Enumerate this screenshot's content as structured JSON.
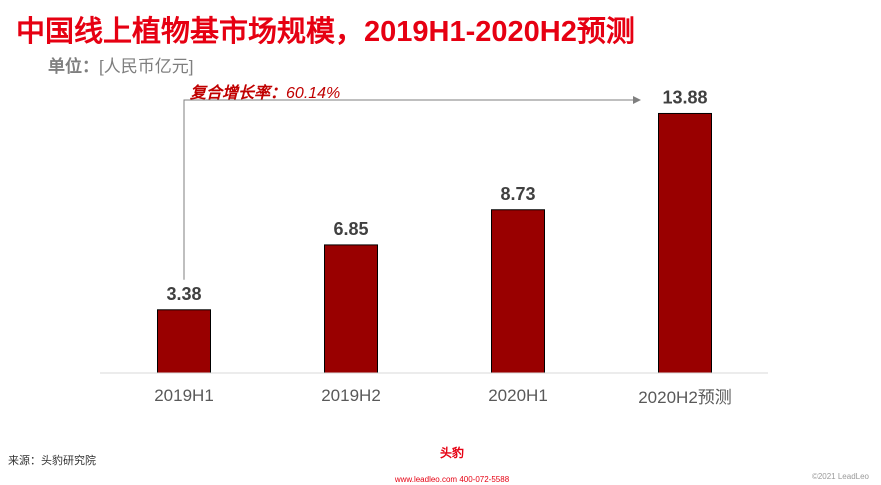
{
  "header": {
    "title": "中国线上植物基市场规模，2019H1-2020H2预测",
    "unit_label": "单位：",
    "unit_value": "[人民币亿元]"
  },
  "annotation": {
    "cagr_label": "复合增长率：",
    "cagr_value": "60.14%"
  },
  "chart_data": {
    "type": "bar",
    "categories": [
      "2019H1",
      "2019H2",
      "2020H1",
      "2020H2预测"
    ],
    "values": [
      3.38,
      6.85,
      8.73,
      13.88
    ],
    "value_labels": [
      "3.38",
      "6.85",
      "8.73",
      "13.88"
    ],
    "title": "中国线上植物基市场规模，2019H1-2020H2预测",
    "ylabel": "",
    "xlabel": "",
    "ylim": [
      0,
      14.6
    ],
    "grid": false,
    "bar_color": "#990000"
  },
  "footer": {
    "source": "来源：头豹研究院",
    "brand": "头豹",
    "contact": "www.leadleo.com  400-072-5588",
    "copyright": "©2021 LeadLeo"
  },
  "watermark": {
    "text": "头豹"
  }
}
